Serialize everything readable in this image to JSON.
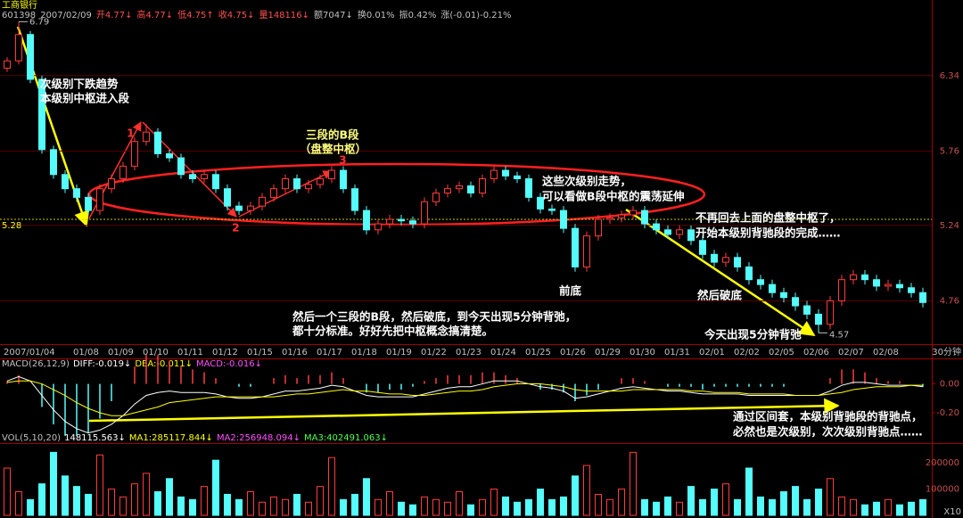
{
  "title": "工商银行",
  "header": [
    "601398",
    "2007/02/09",
    "开4.77↓",
    "高4.77↓",
    "低4.75↑",
    "收4.75↓",
    "量148116↓",
    "额7047↓",
    "换0.01%",
    "振0.42%",
    "涨(-0.01)-0.21%"
  ],
  "chart_data": [
    {
      "type": "candlestick",
      "categories": [
        "2007/01/04",
        null,
        null,
        null,
        null,
        null,
        "01/08",
        null,
        null,
        "01/09",
        null,
        null,
        "01/10",
        null,
        null,
        "01/11",
        null,
        null,
        "01/12",
        null,
        null,
        "01/15",
        null,
        null,
        "01/16",
        null,
        null,
        "01/17",
        null,
        null,
        "01/18",
        null,
        null,
        "01/19",
        null,
        null,
        "01/22",
        null,
        null,
        "01/23",
        null,
        null,
        "01/24",
        null,
        null,
        "01/25",
        null,
        null,
        "01/26",
        null,
        null,
        "01/29",
        null,
        null,
        "01/30",
        null,
        null,
        "01/31",
        null,
        null,
        "02/01",
        null,
        null,
        "02/02",
        null,
        null,
        "02/05",
        null,
        null,
        "02/06",
        null,
        null,
        "02/07",
        null,
        null,
        "02/08",
        null,
        null,
        null,
        null
      ],
      "open": [
        6.4,
        6.46,
        6.68,
        6.31,
        5.77,
        5.59,
        5.49,
        5.43,
        5.34,
        5.49,
        5.56,
        5.65,
        5.83,
        5.9,
        5.74,
        5.71,
        5.59,
        5.56,
        5.59,
        5.49,
        5.37,
        5.34,
        5.37,
        5.43,
        5.49,
        5.56,
        5.49,
        5.52,
        5.56,
        5.62,
        5.49,
        5.34,
        5.21,
        5.25,
        5.28,
        5.27,
        5.25,
        5.4,
        5.46,
        5.49,
        5.51,
        5.46,
        5.56,
        5.62,
        5.58,
        5.56,
        5.43,
        5.35,
        5.34,
        5.22,
        4.97,
        5.17,
        5.28,
        5.29,
        5.31,
        5.34,
        5.25,
        5.21,
        5.18,
        5.21,
        5.14,
        5.05,
        5.0,
        5.03,
        4.97,
        4.89,
        4.86,
        4.81,
        4.78,
        4.73,
        4.68,
        4.62,
        4.76,
        4.89,
        4.92,
        4.89,
        4.85,
        4.86,
        4.84,
        4.81
      ],
      "high": [
        6.49,
        6.79,
        6.71,
        6.34,
        5.8,
        5.62,
        5.52,
        5.46,
        5.52,
        5.59,
        5.68,
        5.86,
        5.96,
        5.93,
        5.77,
        5.74,
        5.62,
        5.62,
        5.62,
        5.52,
        5.4,
        5.4,
        5.46,
        5.52,
        5.59,
        5.59,
        5.55,
        5.59,
        5.65,
        5.65,
        5.52,
        5.37,
        5.28,
        5.31,
        5.31,
        5.3,
        5.43,
        5.49,
        5.52,
        5.54,
        5.54,
        5.59,
        5.65,
        5.65,
        5.61,
        5.59,
        5.46,
        5.38,
        5.37,
        5.25,
        5.2,
        5.31,
        5.32,
        5.34,
        5.37,
        5.37,
        5.28,
        5.24,
        5.24,
        5.24,
        5.17,
        5.08,
        5.06,
        5.06,
        5.0,
        4.92,
        4.89,
        4.84,
        4.81,
        4.76,
        4.71,
        4.79,
        4.92,
        4.95,
        4.95,
        4.92,
        4.89,
        4.89,
        4.87,
        4.84
      ],
      "low": [
        6.37,
        6.43,
        6.28,
        5.74,
        5.56,
        5.46,
        5.4,
        5.31,
        5.31,
        5.46,
        5.53,
        5.62,
        5.8,
        5.71,
        5.68,
        5.56,
        5.53,
        5.53,
        5.46,
        5.34,
        5.31,
        5.31,
        5.34,
        5.4,
        5.46,
        5.46,
        5.46,
        5.49,
        5.53,
        5.46,
        5.31,
        5.18,
        5.18,
        5.22,
        5.24,
        5.22,
        5.22,
        5.37,
        5.43,
        5.46,
        5.43,
        5.43,
        5.53,
        5.55,
        5.53,
        5.4,
        5.32,
        5.31,
        5.19,
        4.94,
        4.94,
        5.14,
        5.25,
        5.26,
        5.28,
        5.22,
        5.18,
        5.15,
        5.15,
        5.11,
        5.02,
        4.97,
        4.97,
        4.94,
        4.86,
        4.83,
        4.78,
        4.75,
        4.7,
        4.65,
        4.57,
        4.59,
        4.73,
        4.86,
        4.86,
        4.82,
        4.82,
        4.81,
        4.78,
        4.72
      ],
      "close": [
        6.46,
        6.68,
        6.31,
        5.77,
        5.59,
        5.49,
        5.43,
        5.34,
        5.49,
        5.56,
        5.65,
        5.83,
        5.9,
        5.74,
        5.71,
        5.59,
        5.56,
        5.59,
        5.49,
        5.37,
        5.34,
        5.37,
        5.43,
        5.49,
        5.56,
        5.49,
        5.52,
        5.56,
        5.62,
        5.49,
        5.34,
        5.21,
        5.25,
        5.28,
        5.27,
        5.25,
        5.4,
        5.46,
        5.49,
        5.51,
        5.46,
        5.56,
        5.62,
        5.58,
        5.56,
        5.43,
        5.35,
        5.34,
        5.22,
        4.97,
        5.17,
        5.28,
        5.29,
        5.31,
        5.34,
        5.25,
        5.21,
        5.18,
        5.21,
        5.14,
        5.05,
        5.0,
        5.03,
        4.97,
        4.89,
        4.86,
        4.81,
        4.78,
        4.73,
        4.68,
        4.62,
        4.76,
        4.89,
        4.92,
        4.89,
        4.85,
        4.86,
        4.84,
        4.81,
        4.75
      ],
      "ylim": [
        4.51,
        6.98
      ],
      "log": true,
      "yticks": [
        6.34,
        5.76,
        5.24,
        4.76
      ],
      "grid": true,
      "up_color": "#ff3c3c",
      "down_color": "#54fcfc",
      "ref_line": 5.28,
      "period": "30分钟"
    },
    {
      "type": "macd",
      "title_parts": [
        "MACD(26,12,9)",
        "DIFF:-0.019↓",
        "DEA:-0.011↓",
        "MACD:-0.016↓"
      ],
      "series": [
        {
          "color": "#ffffff",
          "values": [
            0.02,
            0.05,
            0.02,
            -0.08,
            -0.18,
            -0.26,
            -0.31,
            -0.34,
            -0.32,
            -0.28,
            -0.22,
            -0.14,
            -0.08,
            -0.06,
            -0.05,
            -0.06,
            -0.06,
            -0.06,
            -0.07,
            -0.09,
            -0.1,
            -0.1,
            -0.09,
            -0.07,
            -0.05,
            -0.05,
            -0.04,
            -0.03,
            -0.01,
            -0.02,
            -0.05,
            -0.08,
            -0.09,
            -0.09,
            -0.09,
            -0.09,
            -0.07,
            -0.05,
            -0.03,
            -0.02,
            -0.02,
            0.0,
            0.02,
            0.02,
            0.02,
            0.0,
            -0.02,
            -0.03,
            -0.05,
            -0.1,
            -0.09,
            -0.07,
            -0.05,
            -0.03,
            -0.02,
            -0.03,
            -0.04,
            -0.05,
            -0.05,
            -0.06,
            -0.07,
            -0.07,
            -0.07,
            -0.07,
            -0.08,
            -0.08,
            -0.08,
            -0.08,
            -0.08,
            -0.08,
            -0.08,
            -0.05,
            -0.01,
            0.01,
            0.01,
            0.0,
            -0.01,
            -0.01,
            -0.01,
            -0.02
          ]
        },
        {
          "color": "#ffff00",
          "values": [
            0.01,
            0.02,
            0.02,
            0.0,
            -0.04,
            -0.08,
            -0.13,
            -0.17,
            -0.2,
            -0.22,
            -0.22,
            -0.2,
            -0.18,
            -0.16,
            -0.13,
            -0.12,
            -0.11,
            -0.1,
            -0.09,
            -0.09,
            -0.09,
            -0.09,
            -0.09,
            -0.09,
            -0.08,
            -0.07,
            -0.07,
            -0.06,
            -0.05,
            -0.04,
            -0.05,
            -0.05,
            -0.06,
            -0.07,
            -0.07,
            -0.08,
            -0.08,
            -0.07,
            -0.06,
            -0.05,
            -0.05,
            -0.04,
            -0.02,
            -0.01,
            0.0,
            0.0,
            0.0,
            -0.01,
            -0.02,
            -0.04,
            -0.05,
            -0.05,
            -0.05,
            -0.05,
            -0.04,
            -0.04,
            -0.04,
            -0.04,
            -0.04,
            -0.05,
            -0.05,
            -0.06,
            -0.06,
            -0.06,
            -0.07,
            -0.07,
            -0.07,
            -0.07,
            -0.08,
            -0.08,
            -0.08,
            -0.07,
            -0.06,
            -0.04,
            -0.03,
            -0.02,
            -0.02,
            -0.02,
            -0.01,
            -0.01
          ]
        }
      ],
      "histogram": [
        0.02,
        0.06,
        0,
        -0.16,
        -0.28,
        -0.36,
        -0.36,
        -0.34,
        -0.24,
        -0.12,
        0,
        0.12,
        0.2,
        0.2,
        0.16,
        0.12,
        0.1,
        0.08,
        0.04,
        0,
        -0.02,
        -0.02,
        0,
        0.04,
        0.06,
        0.04,
        0.06,
        0.06,
        0.08,
        0.04,
        0,
        -0.06,
        -0.06,
        -0.04,
        -0.04,
        -0.02,
        0.02,
        0.04,
        0.06,
        0.06,
        0.06,
        0.08,
        0.08,
        0.06,
        0.04,
        0,
        -0.04,
        -0.04,
        -0.06,
        -0.12,
        -0.08,
        -0.04,
        0,
        0.04,
        0.04,
        0.02,
        0,
        -0.02,
        -0.02,
        -0.02,
        -0.04,
        -0.02,
        -0.02,
        -0.02,
        -0.02,
        -0.02,
        -0.02,
        -0.02,
        0,
        0,
        0,
        0.04,
        0.1,
        0.1,
        0.08,
        0.04,
        0.02,
        0.02,
        0,
        -0.02
      ],
      "ylim": [
        -0.41,
        0.17
      ],
      "yticks": [
        {
          "value": 0,
          "label": "0.00"
        },
        {
          "value": -0.2,
          "label": "-0.20"
        }
      ]
    },
    {
      "type": "volume",
      "title_parts": [
        "VOL(5,10,20)",
        "148115.563↓",
        "MA1:285117.844↓",
        "MA2:256948.094↓",
        "MA3:402491.063↓"
      ],
      "values": [
        180000,
        90000,
        60000,
        120000,
        240000,
        150000,
        110000,
        80000,
        230000,
        100000,
        70000,
        120000,
        160000,
        90000,
        140000,
        70000,
        60000,
        110000,
        210000,
        80000,
        60000,
        90000,
        50000,
        70000,
        60000,
        80000,
        50000,
        110000,
        220000,
        60000,
        80000,
        140000,
        60000,
        90000,
        50000,
        40000,
        70000,
        60000,
        50000,
        90000,
        40000,
        60000,
        100000,
        70000,
        50000,
        60000,
        100000,
        60000,
        70000,
        150000,
        190000,
        80000,
        60000,
        100000,
        240000,
        60000,
        50000,
        70000,
        50000,
        110000,
        60000,
        100000,
        120000,
        60000,
        180000,
        70000,
        60000,
        90000,
        110000,
        60000,
        100000,
        140000,
        70000,
        60000,
        40000,
        50000,
        60000,
        40000,
        50000,
        60000
      ],
      "ylim": [
        0,
        265000
      ],
      "yticks": [
        100000,
        200000
      ],
      "unit": "X10"
    }
  ],
  "annotations": [
    "次级别下跌趋势",
    "本级别中枢进入段",
    "1",
    "2",
    "3",
    "三段的B段",
    "（盘整中枢）",
    "这些次级别走势，",
    "可以看做B段中枢的震荡延伸",
    "不再回去上面的盘整中枢了，",
    "开始本级别背驰段的完成……",
    "前底",
    "然后破底",
    "然后一个三段的B段，然后破底，到今天出现5分钟背弛，",
    "都十分标准。好好先把中枢概念搞清楚。",
    "今天出现5分钟背弛",
    "通过区间套，本级别背驰段的背驰点，",
    "必然也是次级别，次次级别背驰点……"
  ]
}
